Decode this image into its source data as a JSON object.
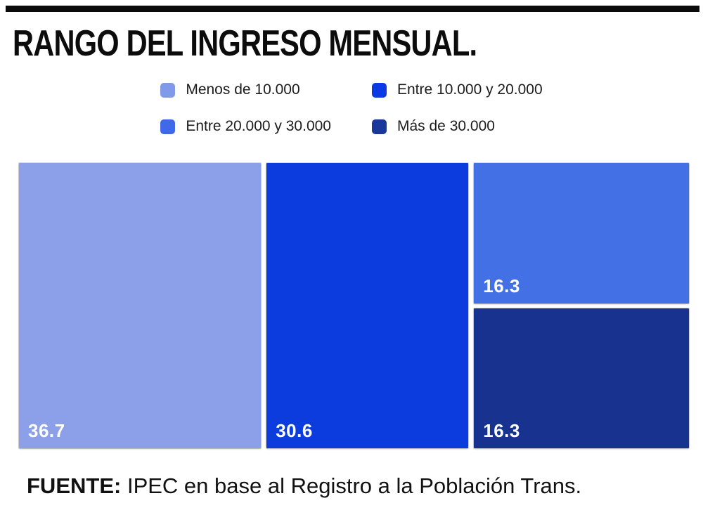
{
  "header": {
    "title": "RANGO DEL INGRESO MENSUAL."
  },
  "legend": [
    {
      "label": "Menos de 10.000",
      "color": "#8199E9"
    },
    {
      "label": "Entre 10.000 y 20.000",
      "color": "#0B39E3"
    },
    {
      "label": "Entre 20.000 y 30.000",
      "color": "#3F69E8"
    },
    {
      "label": "Más de 30.000",
      "color": "#1A389B"
    }
  ],
  "chart_data": {
    "type": "treemap",
    "title": "RANGO DEL INGRESO MENSUAL.",
    "categories": [
      "Menos de 10.000",
      "Entre 10.000 y 20.000",
      "Entre 20.000 y 30.000",
      "Más de 30.000"
    ],
    "values": [
      36.7,
      30.6,
      16.3,
      16.3
    ],
    "unit": "percent",
    "colors": [
      "#8CA0E9",
      "#0D3CDE",
      "#4470E5",
      "#17328F"
    ],
    "label_color": "#FFFFFF",
    "legend_position": "top",
    "layout": "left-to-right, last two tiles stacked in right column"
  },
  "footer": {
    "source_label": "FUENTE:",
    "source_text": "IPEC en base al Registro a la Población Trans."
  }
}
